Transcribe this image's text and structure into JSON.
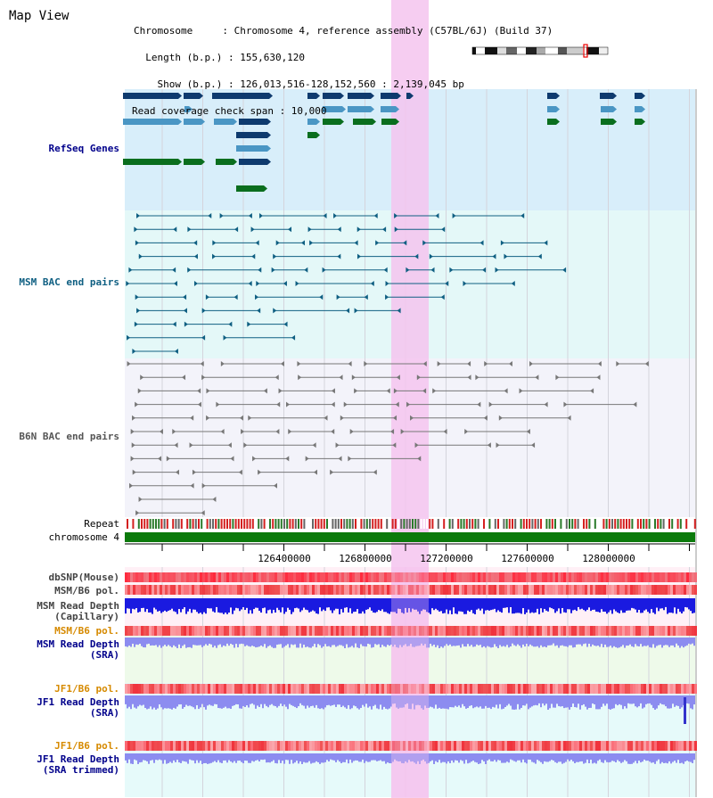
{
  "title": "Map View",
  "info": {
    "chromosome": "Chromosome     : Chromosome 4, reference assembly (C57BL/6J) (Build 37)",
    "length": "  Length (b.p.) : 155,630,120",
    "show": "    Show (b.p.) : 126,013,516-128,152,560 : 2,139,045 bp",
    "coverage": "Read coverage check span : 10,000"
  },
  "tracks": {
    "refseq": "RefSeq Genes",
    "msm_bac": "MSM BAC end pairs",
    "b6n_bac": "B6N BAC end pairs",
    "repeat": "Repeat",
    "chromosome": "chromosome 4",
    "dbsnp": "dbSNP(Mouse)",
    "msm_b6_pol": "MSM/B6 pol.",
    "msm_depth_cap_1": "MSM Read Depth",
    "msm_depth_cap_2": "(Capillary)",
    "msm_b6_pol2": "MSM/B6 pol.",
    "msm_depth_sra_1": "MSM Read Depth",
    "msm_depth_sra_2": "(SRA)",
    "jf1_b6_pol": "JF1/B6 pol.",
    "jf1_depth_sra_1": "JF1 Read Depth",
    "jf1_depth_sra_2": "(SRA)",
    "jf1_b6_pol2": "JF1/B6 pol.",
    "jf1_depth_trim_1": "JF1 Read Depth",
    "jf1_depth_trim_2": "(SRA trimmed)"
  },
  "axis": {
    "ticks": [
      "126400000",
      "126800000",
      "127200000",
      "127600000",
      "128000000"
    ]
  },
  "colors": {
    "refseq_bg": "#d8eefa",
    "msm_bg": "#e4f8f8",
    "b6n_bg": "#f3f3fa",
    "highlight": "#f5c4ee",
    "gene_dark": "#0e3a6e",
    "gene_mid": "#4a96c4",
    "gene_green": "#0a6e1e",
    "msm_pair": "#0f5f82",
    "b6n_pair": "#777777",
    "chromosome_bar": "#0b7a0b",
    "depth_blue": "#1a1ae0",
    "depth_light": "#8c8cf0",
    "label_blue": "#00008b",
    "label_teal": "#0f5f82",
    "label_orange": "#d68a00"
  }
}
